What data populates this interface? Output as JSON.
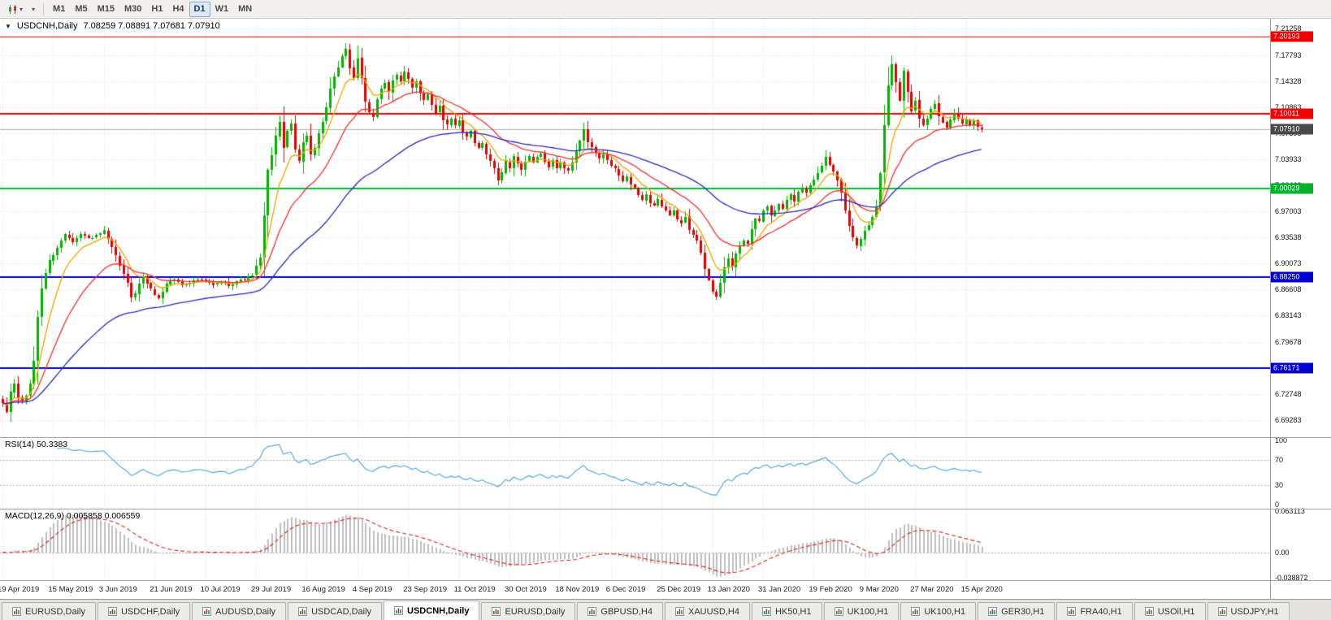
{
  "icons": {
    "caret": "▾",
    "collapse": "▼"
  },
  "toolbar": {
    "timeframes": [
      "M1",
      "M5",
      "M15",
      "M30",
      "H1",
      "H4",
      "D1",
      "W1",
      "MN"
    ],
    "active_timeframe": "D1"
  },
  "chart": {
    "title_symbol": "USDCNH,Daily",
    "title_ohlc": "7.08259 7.08891 7.07681 7.07910"
  },
  "price_axis": {
    "ticks": [
      "7.21258",
      "7.17793",
      "7.14328",
      "7.10863",
      "7.07398",
      "7.03933",
      "7.00468",
      "6.97003",
      "6.93538",
      "6.90073",
      "6.86608",
      "6.83143",
      "6.79678",
      "6.76213",
      "6.72748",
      "6.69283"
    ],
    "badges": [
      {
        "text": "7.20193",
        "price": 7.20193,
        "bg": "#f50000"
      },
      {
        "text": "7.10011",
        "price": 7.10011,
        "bg": "#f50000"
      },
      {
        "text": "7.07910",
        "price": 7.0791,
        "bg": "#4a4a4a"
      },
      {
        "text": "7.00029",
        "price": 7.00029,
        "bg": "#00b32a"
      },
      {
        "text": "6.88250",
        "price": 6.8825,
        "bg": "#0000d2"
      },
      {
        "text": "6.76171",
        "price": 6.76171,
        "bg": "#0000d2"
      }
    ]
  },
  "chart_data": {
    "type": "candlestick",
    "symbol": "USDCNH",
    "timeframe": "Daily",
    "open": "7.08259",
    "high": "7.08891",
    "low": "7.07681",
    "close": "7.07910",
    "visible_range": [
      6.67,
      7.226
    ],
    "num_candles": 252,
    "candles_per_label": 13,
    "up_color": "#00b300",
    "down_color": "#e00000",
    "x_labels": [
      "19 Apr 2019",
      "15 May 2019",
      "3 Jun 2019",
      "21 Jun 2019",
      "10 Jul 2019",
      "29 Jul 2019",
      "16 Aug 2019",
      "4 Sep 2019",
      "23 Sep 2019",
      "11 Oct 2019",
      "30 Oct 2019",
      "18 Nov 2019",
      "6 Dec 2019",
      "25 Dec 2019",
      "13 Jan 2020",
      "31 Jan 2020",
      "19 Feb 2020",
      "9 Mar 2020",
      "27 Mar 2020",
      "15 Apr 2020"
    ],
    "hlines": [
      {
        "price": 7.20193,
        "color": "#f50000",
        "width": 1
      },
      {
        "price": 7.10011,
        "color": "#f50000",
        "width": 2
      },
      {
        "price": 7.0791,
        "color": "#b0b0b0",
        "width": 1
      },
      {
        "price": 7.00029,
        "color": "#00c032",
        "width": 2
      },
      {
        "price": 6.8825,
        "color": "#0000d2",
        "width": 2
      },
      {
        "price": 6.76171,
        "color": "#0000d2",
        "width": 2
      }
    ],
    "moving_averages": [
      {
        "name": "fast-ma",
        "period": 8,
        "color": "#efa300"
      },
      {
        "name": "mid-ma",
        "period": 21,
        "color": "#f03030"
      },
      {
        "name": "slow-ma",
        "period": 55,
        "color": "#2828c8"
      }
    ],
    "close_anchors": [
      [
        0,
        6.714
      ],
      [
        1,
        6.704
      ],
      [
        2,
        6.73
      ],
      [
        3,
        6.742
      ],
      [
        4,
        6.722
      ],
      [
        5,
        6.718
      ],
      [
        6,
        6.726
      ],
      [
        7,
        6.74
      ],
      [
        8,
        6.772
      ],
      [
        9,
        6.83
      ],
      [
        10,
        6.868
      ],
      [
        11,
        6.888
      ],
      [
        12,
        6.904
      ],
      [
        14,
        6.922
      ],
      [
        16,
        6.94
      ],
      [
        18,
        6.93
      ],
      [
        20,
        6.94
      ],
      [
        22,
        6.934
      ],
      [
        24,
        6.938
      ],
      [
        26,
        6.944
      ],
      [
        28,
        6.922
      ],
      [
        30,
        6.898
      ],
      [
        32,
        6.874
      ],
      [
        33,
        6.856
      ],
      [
        34,
        6.862
      ],
      [
        36,
        6.884
      ],
      [
        38,
        6.866
      ],
      [
        40,
        6.854
      ],
      [
        42,
        6.874
      ],
      [
        44,
        6.88
      ],
      [
        46,
        6.872
      ],
      [
        48,
        6.876
      ],
      [
        50,
        6.88
      ],
      [
        52,
        6.877
      ],
      [
        54,
        6.872
      ],
      [
        56,
        6.876
      ],
      [
        58,
        6.872
      ],
      [
        60,
        6.877
      ],
      [
        62,
        6.88
      ],
      [
        64,
        6.886
      ],
      [
        66,
        6.908
      ],
      [
        67,
        6.964
      ],
      [
        68,
        7.024
      ],
      [
        69,
        7.046
      ],
      [
        70,
        7.07
      ],
      [
        71,
        7.088
      ],
      [
        72,
        7.056
      ],
      [
        73,
        7.076
      ],
      [
        74,
        7.086
      ],
      [
        75,
        7.052
      ],
      [
        76,
        7.038
      ],
      [
        77,
        7.062
      ],
      [
        78,
        7.07
      ],
      [
        79,
        7.046
      ],
      [
        80,
        7.054
      ],
      [
        81,
        7.072
      ],
      [
        82,
        7.088
      ],
      [
        83,
        7.108
      ],
      [
        84,
        7.132
      ],
      [
        85,
        7.148
      ],
      [
        86,
        7.162
      ],
      [
        87,
        7.176
      ],
      [
        88,
        7.186
      ],
      [
        89,
        7.16
      ],
      [
        90,
        7.148
      ],
      [
        91,
        7.172
      ],
      [
        92,
        7.146
      ],
      [
        93,
        7.116
      ],
      [
        94,
        7.102
      ],
      [
        95,
        7.096
      ],
      [
        96,
        7.12
      ],
      [
        97,
        7.132
      ],
      [
        98,
        7.14
      ],
      [
        99,
        7.128
      ],
      [
        100,
        7.144
      ],
      [
        101,
        7.152
      ],
      [
        102,
        7.144
      ],
      [
        103,
        7.156
      ],
      [
        104,
        7.146
      ],
      [
        105,
        7.134
      ],
      [
        106,
        7.142
      ],
      [
        107,
        7.126
      ],
      [
        108,
        7.118
      ],
      [
        109,
        7.126
      ],
      [
        110,
        7.112
      ],
      [
        111,
        7.102
      ],
      [
        112,
        7.11
      ],
      [
        113,
        7.092
      ],
      [
        114,
        7.086
      ],
      [
        115,
        7.094
      ],
      [
        116,
        7.084
      ],
      [
        117,
        7.09
      ],
      [
        118,
        7.076
      ],
      [
        119,
        7.068
      ],
      [
        120,
        7.076
      ],
      [
        121,
        7.06
      ],
      [
        122,
        7.054
      ],
      [
        123,
        7.06
      ],
      [
        124,
        7.046
      ],
      [
        125,
        7.038
      ],
      [
        126,
        7.028
      ],
      [
        127,
        7.012
      ],
      [
        128,
        7.022
      ],
      [
        129,
        7.036
      ],
      [
        130,
        7.028
      ],
      [
        131,
        7.042
      ],
      [
        132,
        7.034
      ],
      [
        133,
        7.026
      ],
      [
        134,
        7.036
      ],
      [
        135,
        7.042
      ],
      [
        136,
        7.034
      ],
      [
        137,
        7.042
      ],
      [
        138,
        7.046
      ],
      [
        139,
        7.036
      ],
      [
        140,
        7.03
      ],
      [
        141,
        7.038
      ],
      [
        142,
        7.028
      ],
      [
        143,
        7.034
      ],
      [
        144,
        7.028
      ],
      [
        145,
        7.024
      ],
      [
        146,
        7.036
      ],
      [
        147,
        7.05
      ],
      [
        148,
        7.064
      ],
      [
        149,
        7.08
      ],
      [
        150,
        7.062
      ],
      [
        151,
        7.054
      ],
      [
        152,
        7.048
      ],
      [
        153,
        7.04
      ],
      [
        154,
        7.046
      ],
      [
        155,
        7.038
      ],
      [
        156,
        7.03
      ],
      [
        157,
        7.026
      ],
      [
        158,
        7.018
      ],
      [
        159,
        7.01
      ],
      [
        160,
        7.016
      ],
      [
        161,
        7.006
      ],
      [
        162,
        7.0
      ],
      [
        163,
        6.992
      ],
      [
        164,
        6.986
      ],
      [
        165,
        6.992
      ],
      [
        166,
        6.982
      ],
      [
        167,
        6.978
      ],
      [
        168,
        6.986
      ],
      [
        169,
        6.976
      ],
      [
        170,
        6.97
      ],
      [
        171,
        6.964
      ],
      [
        172,
        6.97
      ],
      [
        173,
        6.96
      ],
      [
        174,
        6.954
      ],
      [
        175,
        6.962
      ],
      [
        176,
        6.946
      ],
      [
        177,
        6.94
      ],
      [
        178,
        6.932
      ],
      [
        179,
        6.914
      ],
      [
        180,
        6.894
      ],
      [
        181,
        6.878
      ],
      [
        182,
        6.864
      ],
      [
        183,
        6.858
      ],
      [
        184,
        6.876
      ],
      [
        185,
        6.896
      ],
      [
        186,
        6.906
      ],
      [
        187,
        6.896
      ],
      [
        188,
        6.914
      ],
      [
        189,
        6.924
      ],
      [
        190,
        6.932
      ],
      [
        191,
        6.926
      ],
      [
        192,
        6.946
      ],
      [
        193,
        6.96
      ],
      [
        194,
        6.956
      ],
      [
        195,
        6.97
      ],
      [
        196,
        6.978
      ],
      [
        197,
        6.964
      ],
      [
        198,
        6.972
      ],
      [
        199,
        6.98
      ],
      [
        200,
        6.974
      ],
      [
        201,
        6.986
      ],
      [
        202,
        6.992
      ],
      [
        203,
        6.984
      ],
      [
        204,
        6.996
      ],
      [
        205,
        7.002
      ],
      [
        206,
        6.996
      ],
      [
        207,
        7.006
      ],
      [
        208,
        7.012
      ],
      [
        209,
        7.02
      ],
      [
        210,
        7.03
      ],
      [
        211,
        7.042
      ],
      [
        212,
        7.032
      ],
      [
        213,
        7.022
      ],
      [
        214,
        7.012
      ],
      [
        215,
        6.996
      ],
      [
        216,
        6.972
      ],
      [
        217,
        6.95
      ],
      [
        218,
        6.936
      ],
      [
        219,
        6.926
      ],
      [
        220,
        6.934
      ],
      [
        221,
        6.944
      ],
      [
        222,
        6.952
      ],
      [
        223,
        6.962
      ],
      [
        224,
        6.976
      ],
      [
        225,
        7.022
      ],
      [
        226,
        7.084
      ],
      [
        227,
        7.138
      ],
      [
        228,
        7.166
      ],
      [
        229,
        7.142
      ],
      [
        230,
        7.118
      ],
      [
        231,
        7.156
      ],
      [
        232,
        7.128
      ],
      [
        233,
        7.104
      ],
      [
        234,
        7.118
      ],
      [
        235,
        7.094
      ],
      [
        236,
        7.084
      ],
      [
        237,
        7.094
      ],
      [
        238,
        7.106
      ],
      [
        239,
        7.112
      ],
      [
        240,
        7.096
      ],
      [
        241,
        7.088
      ],
      [
        242,
        7.08
      ],
      [
        243,
        7.092
      ],
      [
        244,
        7.102
      ],
      [
        245,
        7.094
      ],
      [
        246,
        7.086
      ],
      [
        247,
        7.092
      ],
      [
        248,
        7.084
      ],
      [
        249,
        7.09
      ],
      [
        250,
        7.082
      ],
      [
        251,
        7.079
      ]
    ],
    "rsi": {
      "label": "RSI(14) 50.3383",
      "period": 14,
      "current": "50.3383",
      "levels": [
        100,
        70,
        30,
        0
      ],
      "line_color": "#4aa2dc"
    },
    "macd": {
      "label": "MACD(12,26,9) 0.005858 0.006559",
      "fast": 12,
      "slow": 26,
      "signal": 9,
      "macd_value": "0.005858",
      "signal_value": "0.006559",
      "axis_labels": [
        "0.063113",
        "0.00",
        "-0.038872"
      ],
      "axis_range": [
        -0.038872,
        0.063113
      ],
      "hist_color": "#bdbdbd",
      "signal_color": "#dd2222"
    }
  },
  "bottom_tabs": {
    "items": [
      "EURUSD,Daily",
      "USDCHF,Daily",
      "AUDUSD,Daily",
      "USDCAD,Daily",
      "USDCNH,Daily",
      "EURUSD,Daily",
      "GBPUSD,H4",
      "XAUUSD,H4",
      "HK50,H1",
      "UK100,H1",
      "UK100,H1",
      "GER30,H1",
      "FRA40,H1",
      "USOil,H1",
      "USDJPY,H1"
    ],
    "active_index": 4
  }
}
